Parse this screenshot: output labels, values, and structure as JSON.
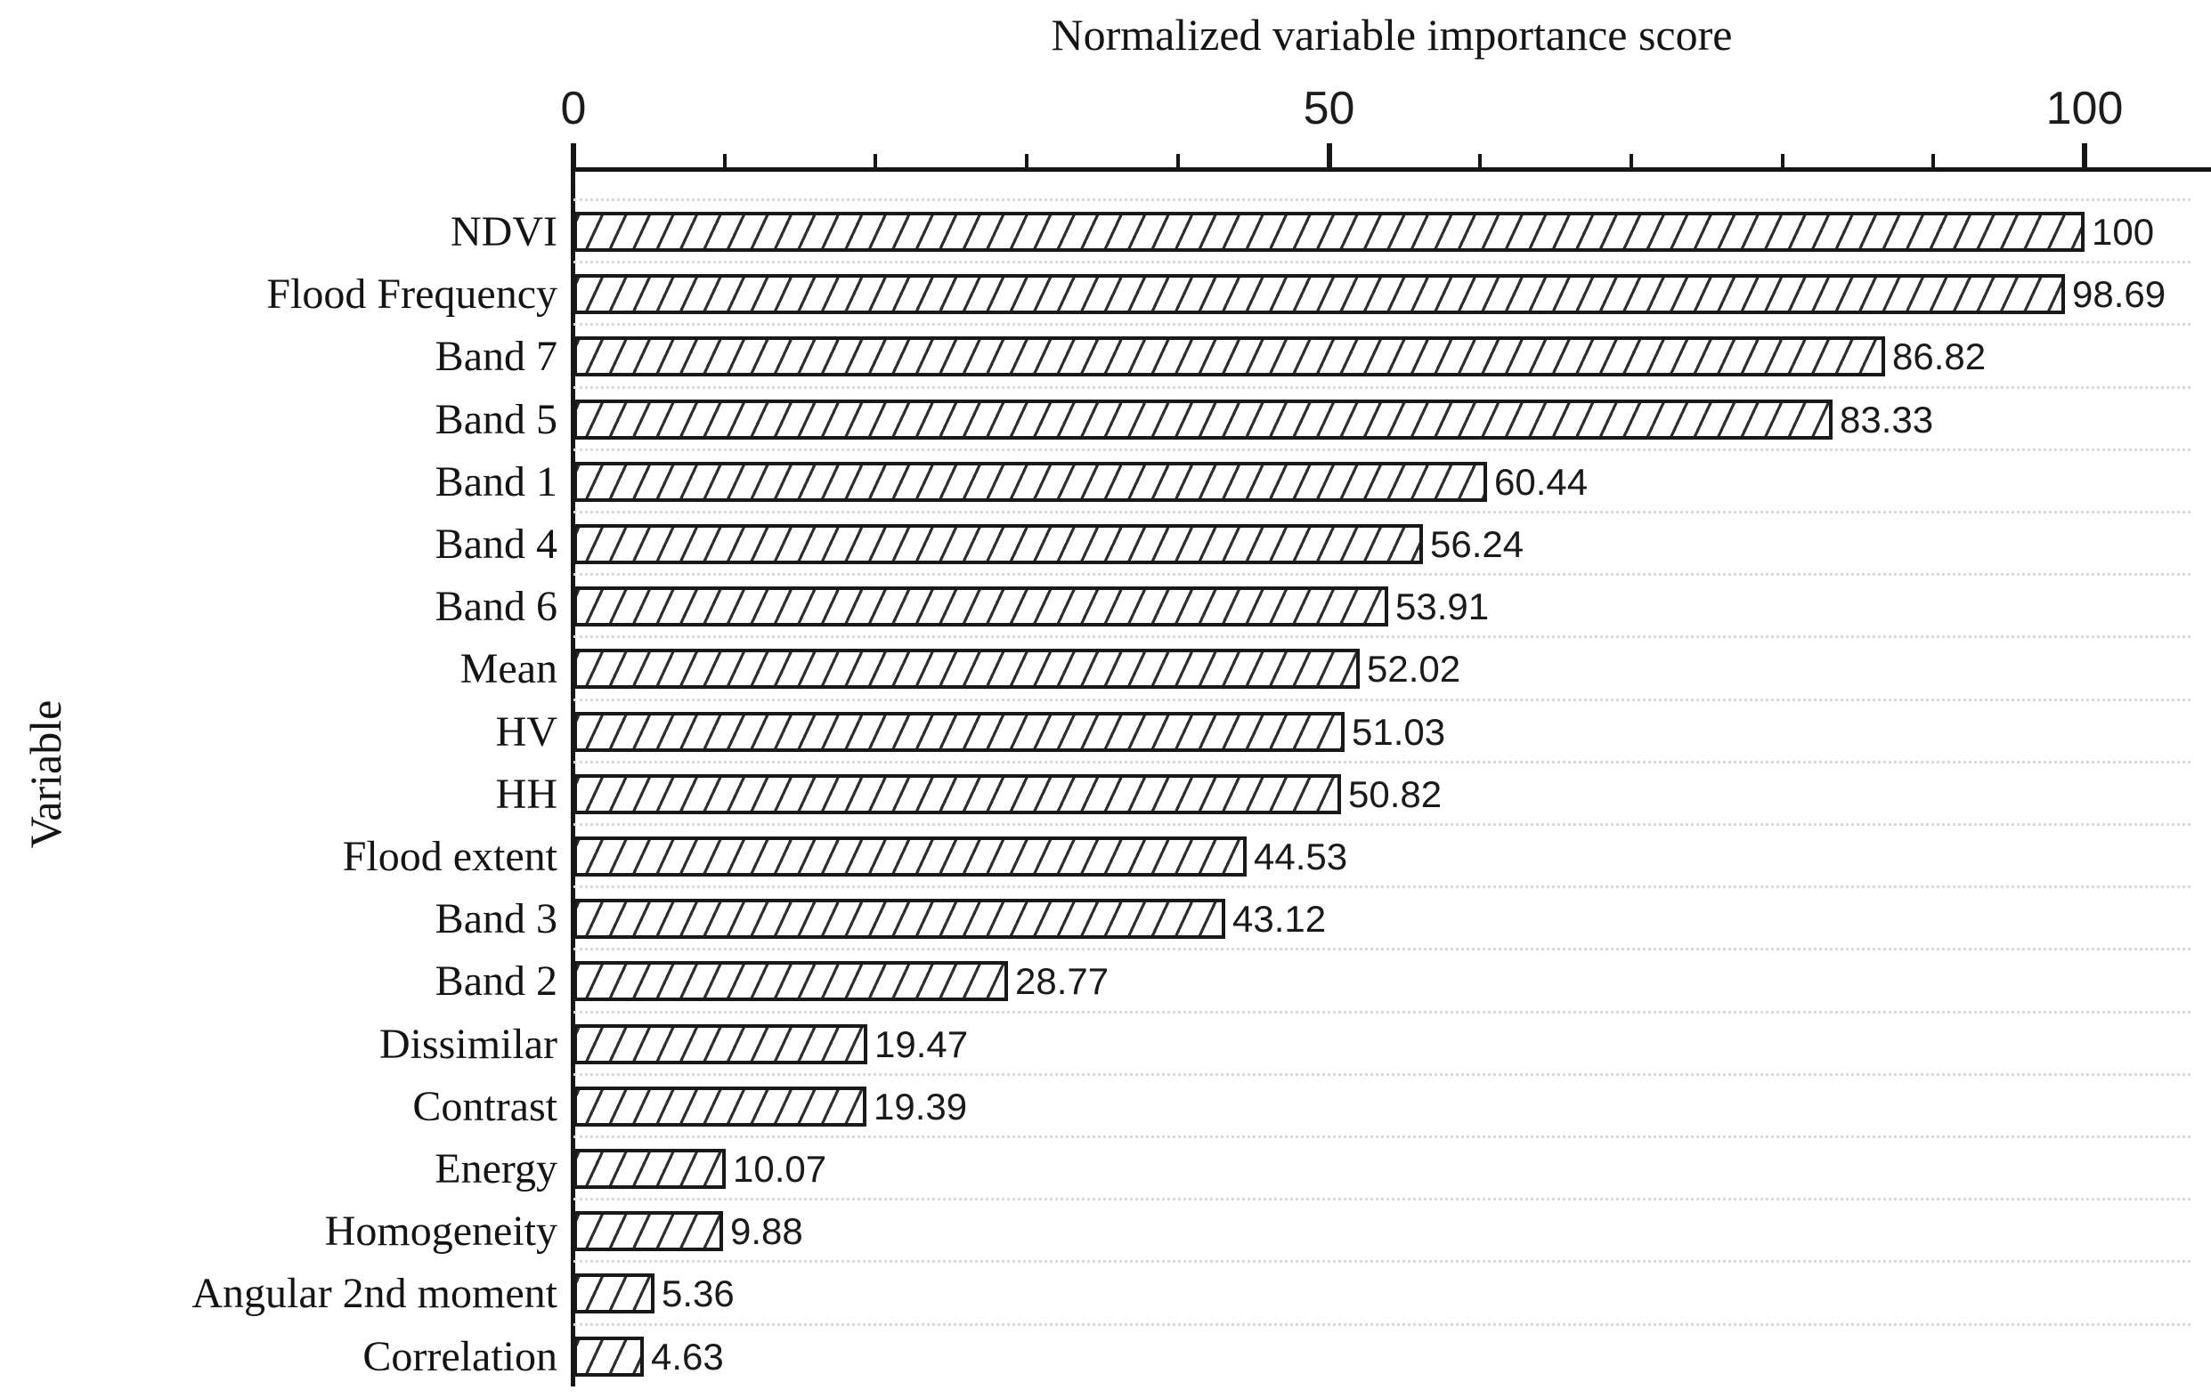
{
  "chart_data": {
    "type": "bar",
    "orientation": "horizontal",
    "title": "Normalized variable importance score",
    "xlabel": "Normalized variable importance score",
    "ylabel": "Variable",
    "xlim": [
      0,
      100
    ],
    "x_ticks_major": [
      0,
      50,
      100
    ],
    "x_tick_labels": [
      "0",
      "50",
      "100"
    ],
    "x_minor_tick_step": 10,
    "legend": "none",
    "grid": "faint dotted horizontal separators between bars",
    "bar_style": {
      "fill": "#fefefe",
      "hatch": "forward-diagonal",
      "hatch_color": "#2e2e2e",
      "border_color": "#191919"
    },
    "categories": [
      "NDVI",
      "Flood Frequency",
      "Band 7",
      "Band 5",
      "Band 1",
      "Band 4",
      "Band 6",
      "Mean",
      "HV",
      "HH",
      "Flood extent",
      "Band 3",
      "Band 2",
      "Dissimilar",
      "Contrast",
      "Energy",
      "Homogeneity",
      "Angular 2nd moment",
      "Correlation"
    ],
    "values": [
      100,
      98.69,
      86.82,
      83.33,
      60.44,
      56.24,
      53.91,
      52.02,
      51.03,
      50.82,
      44.53,
      43.12,
      28.77,
      19.47,
      19.39,
      10.07,
      9.88,
      5.36,
      4.63
    ],
    "value_labels": [
      "100",
      "98.69",
      "86.82",
      "83.33",
      "60.44",
      "56.24",
      "53.91",
      "52.02",
      "51.03",
      "50.82",
      "44.53",
      "43.12",
      "28.77",
      "19.47",
      "19.39",
      "10.07",
      "9.88",
      "5.36",
      "4.63"
    ]
  }
}
